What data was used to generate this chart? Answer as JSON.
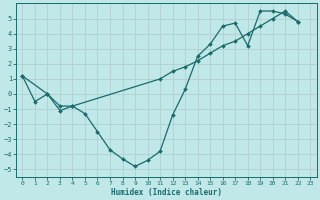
{
  "xlabel": "Humidex (Indice chaleur)",
  "bg_color": "#c0e8e8",
  "grid_color": "#b0d0d0",
  "line_color": "#1a6b6b",
  "xlim": [
    -0.5,
    23.5
  ],
  "ylim": [
    -5.5,
    6.0
  ],
  "xticks": [
    0,
    1,
    2,
    3,
    4,
    5,
    6,
    7,
    8,
    9,
    10,
    11,
    12,
    13,
    14,
    15,
    16,
    17,
    18,
    19,
    20,
    21,
    22,
    23
  ],
  "yticks": [
    -5,
    -4,
    -3,
    -2,
    -1,
    0,
    1,
    2,
    3,
    4,
    5
  ],
  "line1_x": [
    0,
    1,
    2,
    3,
    4,
    5,
    6,
    7,
    8,
    9,
    10,
    11,
    12,
    13,
    14,
    15,
    16,
    17,
    18,
    19,
    20,
    21,
    22
  ],
  "line1_y": [
    1.2,
    -0.5,
    -0.0,
    -1.1,
    -0.8,
    -1.3,
    -2.5,
    -3.7,
    -4.3,
    -4.8,
    -4.4,
    -3.8,
    -1.4,
    0.3,
    2.5,
    3.3,
    4.5,
    4.7,
    3.2,
    5.5,
    5.5,
    5.3,
    4.8
  ],
  "line2_x": [
    0,
    2,
    3,
    4,
    11,
    12,
    13,
    14,
    15,
    16,
    17,
    18,
    19,
    20,
    21,
    22
  ],
  "line2_y": [
    1.2,
    0.0,
    -0.8,
    -0.8,
    1.0,
    1.5,
    1.8,
    2.2,
    2.7,
    3.2,
    3.5,
    4.0,
    4.5,
    5.0,
    5.5,
    4.8
  ]
}
